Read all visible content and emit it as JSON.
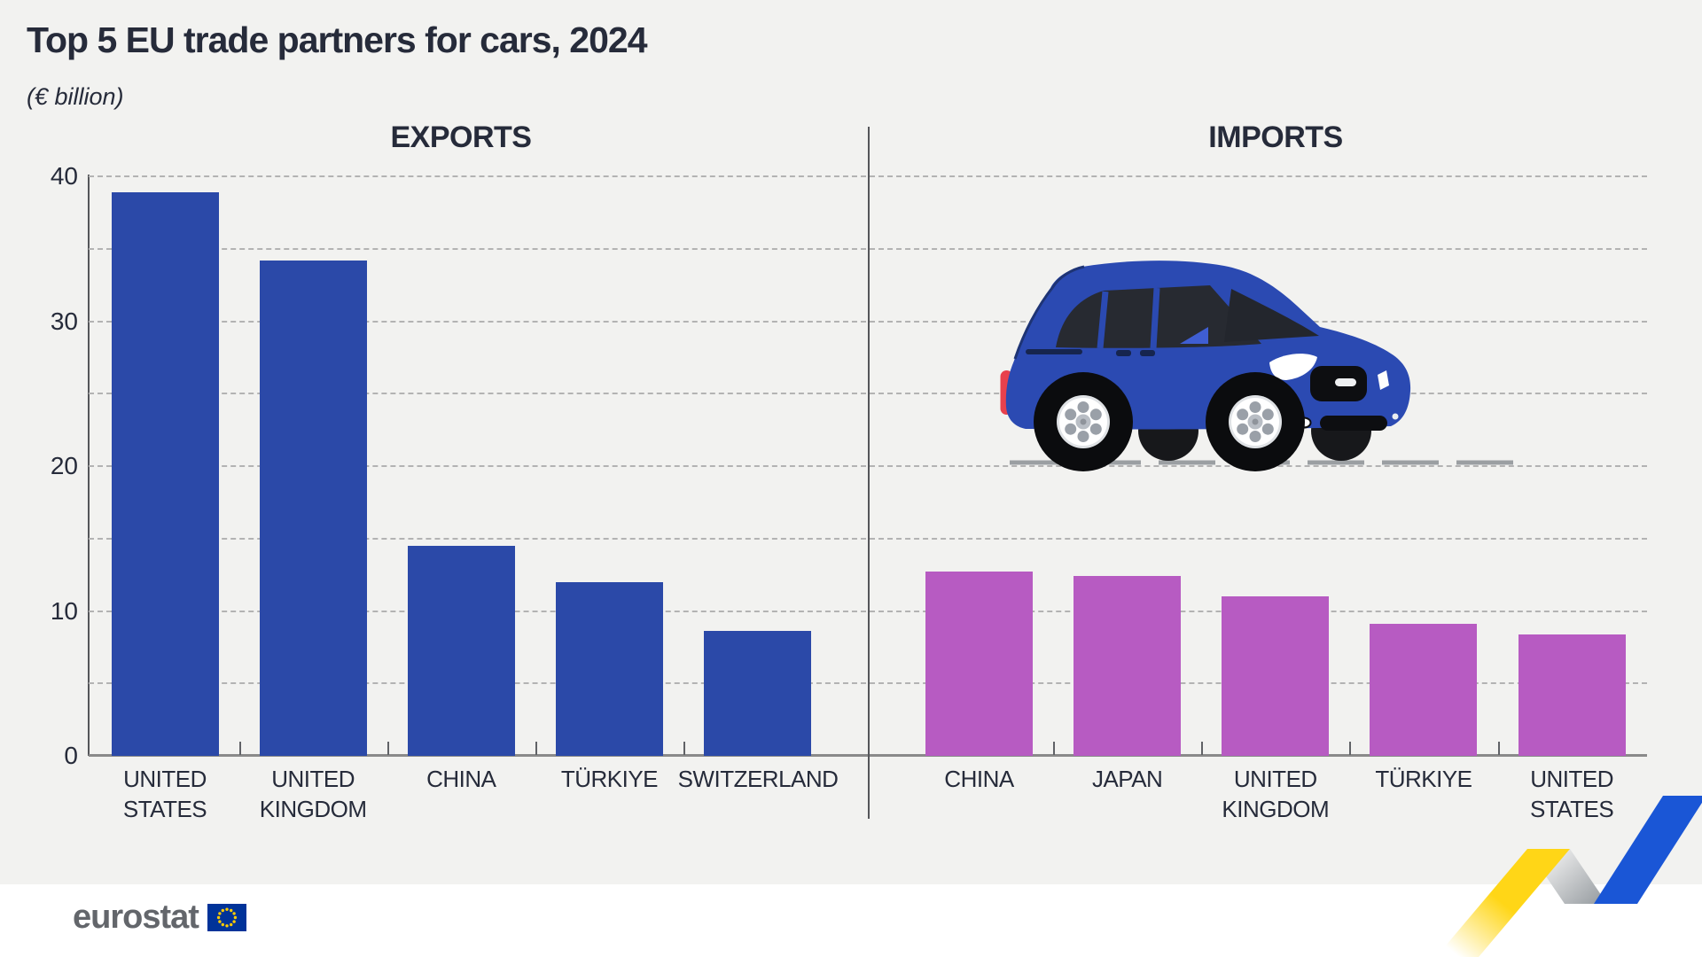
{
  "page_title": "Top 5 EU trade partners for cars, 2024",
  "subtitle": "(€ billion)",
  "chart_data": [
    {
      "type": "bar",
      "panel": "left",
      "title": "EXPORTS",
      "unit": "€ billion",
      "ylim": [
        0,
        40
      ],
      "yticks": [
        0,
        10,
        20,
        30,
        40
      ],
      "gridline_step": 5,
      "grid": "dashed horizontal",
      "legend_position": "none",
      "bar_color": "#2B49A8",
      "categories": [
        "UNITED STATES",
        "UNITED KINGDOM",
        "CHINA",
        "TÜRKIYE",
        "SWITZERLAND"
      ],
      "category_lines": [
        [
          "UNITED",
          "STATES"
        ],
        [
          "UNITED",
          "KINGDOM"
        ],
        [
          "CHINA"
        ],
        [
          "TÜRKIYE"
        ],
        [
          "SWITZERLAND"
        ]
      ],
      "values": [
        38.9,
        34.2,
        14.5,
        12.0,
        8.6
      ]
    },
    {
      "type": "bar",
      "panel": "right",
      "title": "IMPORTS",
      "unit": "€ billion",
      "ylim": [
        0,
        40
      ],
      "yticks": [
        0,
        10,
        20,
        30,
        40
      ],
      "gridline_step": 5,
      "grid": "dashed horizontal",
      "legend_position": "none",
      "bar_color": "#B75BC2",
      "categories": [
        "CHINA",
        "JAPAN",
        "UNITED KINGDOM",
        "TÜRKIYE",
        "UNITED STATES"
      ],
      "category_lines": [
        [
          "CHINA"
        ],
        [
          "JAPAN"
        ],
        [
          "UNITED",
          "KINGDOM"
        ],
        [
          "TÜRKIYE"
        ],
        [
          "UNITED",
          "STATES"
        ]
      ],
      "values": [
        12.7,
        12.4,
        11.0,
        9.1,
        8.4
      ]
    }
  ],
  "footer": {
    "logo_text": "eurostat"
  },
  "decor": {
    "car_illustration": "blue-minivan-side-view",
    "ribbon": "eurostat-yellow-gray-blue-zigzag"
  },
  "colors": {
    "background": "#F2F2F0",
    "footer_background": "#FFFFFF",
    "text_dark": "#262B3A",
    "export_bar_blue": "#2B49A8",
    "import_bar_purple": "#B75BC2",
    "gridline_gray": "#B3B3B3",
    "axis_gray": "#55565A",
    "baseline_gray": "#8A8A8A",
    "logo_gray": "#63666B",
    "eu_flag_blue": "#003399",
    "eu_star_yellow": "#FFCC00",
    "ribbon_yellow": "#FFD617",
    "ribbon_blue": "#1A56D6",
    "car_blue": "#2B4AB2",
    "tail_light_red": "#E8414D"
  }
}
